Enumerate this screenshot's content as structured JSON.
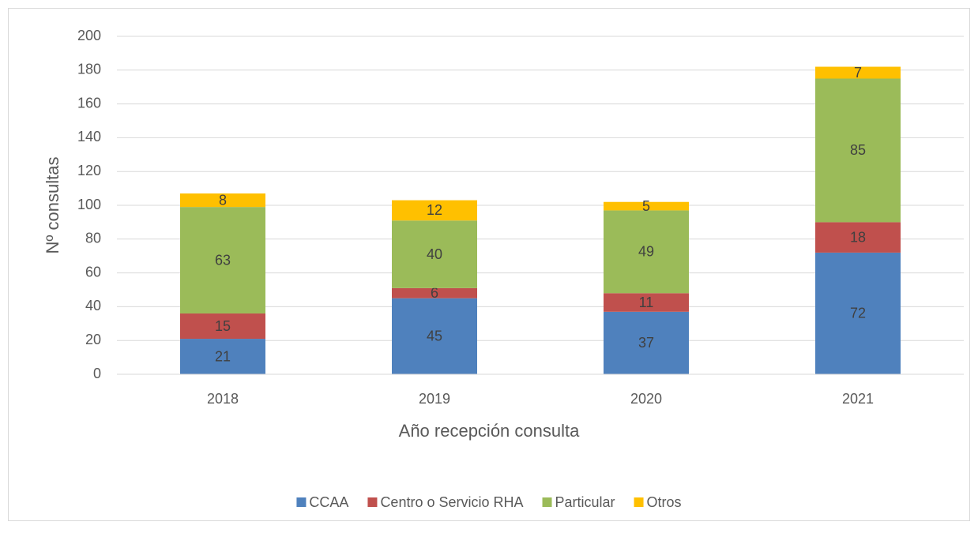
{
  "chart_data": {
    "type": "stacked_bar",
    "categories": [
      "2018",
      "2019",
      "2020",
      "2021"
    ],
    "series": [
      {
        "name": "CCAA",
        "color": "#4f81bd",
        "values": [
          21,
          45,
          37,
          72
        ]
      },
      {
        "name": "Centro o Servicio RHA",
        "color": "#c0504d",
        "values": [
          15,
          6,
          11,
          18
        ]
      },
      {
        "name": "Particular",
        "color": "#9bbb59",
        "values": [
          63,
          40,
          49,
          85
        ]
      },
      {
        "name": "Otros",
        "color": "#ffc000",
        "values": [
          8,
          12,
          5,
          7
        ]
      }
    ],
    "ylim": [
      0,
      200
    ],
    "yticks": [
      0,
      20,
      40,
      60,
      80,
      100,
      120,
      140,
      160,
      180,
      200
    ],
    "xlabel": "Año recepción consulta",
    "ylabel": "Nº consultas",
    "grid": true,
    "legend": "bottom"
  }
}
